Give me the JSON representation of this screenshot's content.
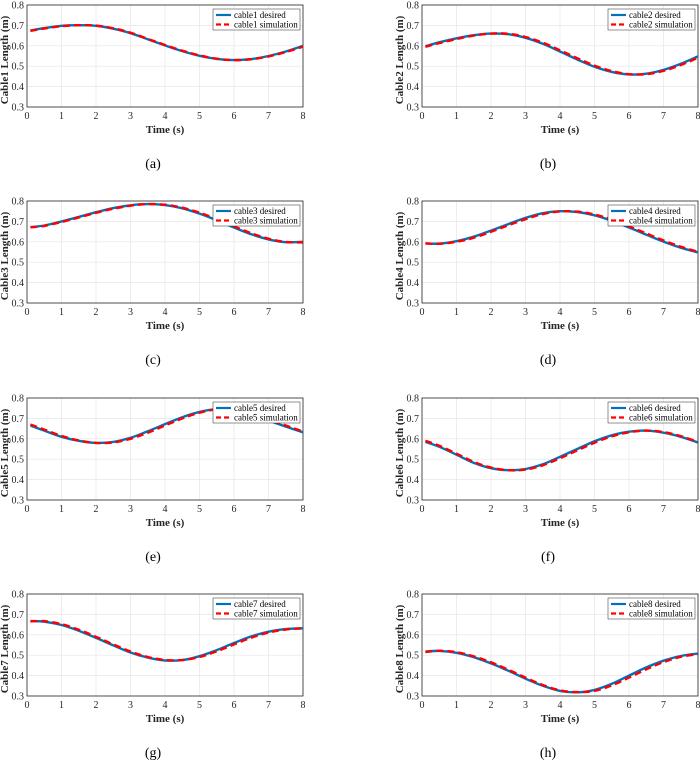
{
  "chart_data": [
    {
      "type": "line",
      "caption": "(a)",
      "xlabel": "Time (s)",
      "ylabel": "Cable1 Length (m)",
      "xlim": [
        0,
        8
      ],
      "ylim": [
        0.3,
        0.8
      ],
      "xticks": [
        "0",
        "1",
        "2",
        "3",
        "4",
        "5",
        "6",
        "7",
        "8"
      ],
      "yticks": [
        "0.3",
        "0.4",
        "0.5",
        "0.6",
        "0.7",
        "0.8"
      ],
      "grid": true,
      "legend_position": "top-right",
      "x": [
        0.1,
        0.5,
        1,
        1.5,
        2,
        2.5,
        3,
        3.5,
        4,
        4.5,
        5,
        5.5,
        6,
        6.5,
        7,
        7.5,
        8
      ],
      "series": [
        {
          "name": "cable1 desired",
          "color": "#0072BD",
          "style": "solid",
          "values": [
            0.675,
            0.687,
            0.698,
            0.701,
            0.698,
            0.684,
            0.662,
            0.632,
            0.602,
            0.574,
            0.551,
            0.536,
            0.53,
            0.535,
            0.55,
            0.572,
            0.6
          ]
        },
        {
          "name": "cable1 simulation",
          "color": "#FF0000",
          "style": "dashed",
          "lag": 0.1,
          "values": [
            0.673,
            0.685,
            0.696,
            0.701,
            0.699,
            0.686,
            0.664,
            0.634,
            0.604,
            0.576,
            0.553,
            0.537,
            0.53,
            0.534,
            0.548,
            0.569,
            0.596
          ]
        }
      ]
    },
    {
      "type": "line",
      "caption": "(b)",
      "xlabel": "Time (s)",
      "ylabel": "Cable2 Length (m)",
      "xlim": [
        0,
        8
      ],
      "ylim": [
        0.3,
        0.8
      ],
      "xticks": [
        "0",
        "1",
        "2",
        "3",
        "4",
        "5",
        "6",
        "7",
        "8"
      ],
      "yticks": [
        "0.3",
        "0.4",
        "0.5",
        "0.6",
        "0.7",
        "0.8"
      ],
      "grid": true,
      "legend_position": "top-right",
      "x": [
        0.1,
        0.5,
        1,
        1.5,
        2,
        2.5,
        3,
        3.5,
        4,
        4.5,
        5,
        5.5,
        6,
        6.5,
        7,
        7.5,
        8
      ],
      "series": [
        {
          "name": "cable2 desired",
          "color": "#0072BD",
          "style": "solid",
          "values": [
            0.598,
            0.617,
            0.637,
            0.652,
            0.66,
            0.657,
            0.639,
            0.61,
            0.572,
            0.533,
            0.497,
            0.472,
            0.46,
            0.463,
            0.482,
            0.512,
            0.548
          ]
        },
        {
          "name": "cable2 simulation",
          "color": "#FF0000",
          "style": "dashed",
          "values": [
            0.595,
            0.613,
            0.633,
            0.65,
            0.66,
            0.659,
            0.643,
            0.615,
            0.578,
            0.539,
            0.503,
            0.476,
            0.461,
            0.461,
            0.477,
            0.506,
            0.541
          ]
        }
      ]
    },
    {
      "type": "line",
      "caption": "(c)",
      "xlabel": "Time (s)",
      "ylabel": "Cable3 Length (m)",
      "xlim": [
        0,
        8
      ],
      "ylim": [
        0.3,
        0.8
      ],
      "xticks": [
        "0",
        "1",
        "2",
        "3",
        "4",
        "5",
        "6",
        "7",
        "8"
      ],
      "yticks": [
        "0.3",
        "0.4",
        "0.5",
        "0.6",
        "0.7",
        "0.8"
      ],
      "grid": true,
      "legend_position": "top-right",
      "x": [
        0.1,
        0.5,
        1,
        1.5,
        2,
        2.5,
        3,
        3.5,
        4,
        4.5,
        5,
        5.5,
        6,
        6.5,
        7,
        7.5,
        8
      ],
      "series": [
        {
          "name": "cable3 desired",
          "color": "#0072BD",
          "style": "solid",
          "values": [
            0.672,
            0.68,
            0.7,
            0.722,
            0.745,
            0.765,
            0.779,
            0.785,
            0.78,
            0.764,
            0.738,
            0.706,
            0.67,
            0.637,
            0.612,
            0.598,
            0.6
          ]
        },
        {
          "name": "cable3 simulation",
          "color": "#FF0000",
          "style": "dashed",
          "values": [
            0.671,
            0.678,
            0.697,
            0.719,
            0.742,
            0.762,
            0.777,
            0.785,
            0.782,
            0.767,
            0.743,
            0.711,
            0.676,
            0.642,
            0.615,
            0.599,
            0.597
          ]
        }
      ]
    },
    {
      "type": "line",
      "caption": "(d)",
      "xlabel": "Time (s)",
      "ylabel": "Cable4 Length (m)",
      "xlim": [
        0,
        8
      ],
      "ylim": [
        0.3,
        0.8
      ],
      "xticks": [
        "0",
        "1",
        "2",
        "3",
        "4",
        "5",
        "6",
        "7",
        "8"
      ],
      "yticks": [
        "0.3",
        "0.4",
        "0.5",
        "0.6",
        "0.7",
        "0.8"
      ],
      "grid": true,
      "legend_position": "top-right",
      "x": [
        0.1,
        0.5,
        1,
        1.5,
        2,
        2.5,
        3,
        3.5,
        4,
        4.5,
        5,
        5.5,
        6,
        6.5,
        7,
        7.5,
        8
      ],
      "series": [
        {
          "name": "cable4 desired",
          "color": "#0072BD",
          "style": "solid",
          "values": [
            0.592,
            0.591,
            0.603,
            0.625,
            0.655,
            0.687,
            0.717,
            0.74,
            0.75,
            0.746,
            0.73,
            0.703,
            0.67,
            0.635,
            0.601,
            0.571,
            0.548
          ]
        },
        {
          "name": "cable4 simulation",
          "color": "#FF0000",
          "style": "dashed",
          "values": [
            0.592,
            0.59,
            0.6,
            0.62,
            0.649,
            0.681,
            0.711,
            0.736,
            0.749,
            0.748,
            0.734,
            0.709,
            0.676,
            0.641,
            0.607,
            0.576,
            0.551
          ]
        }
      ]
    },
    {
      "type": "line",
      "caption": "(e)",
      "xlabel": "Time (s)",
      "ylabel": "Cable5 Length (m)",
      "xlim": [
        0,
        8
      ],
      "ylim": [
        0.3,
        0.8
      ],
      "xticks": [
        "0",
        "1",
        "2",
        "3",
        "4",
        "5",
        "6",
        "7",
        "8"
      ],
      "yticks": [
        "0.3",
        "0.4",
        "0.5",
        "0.6",
        "0.7",
        "0.8"
      ],
      "grid": true,
      "legend_position": "top-right",
      "x": [
        0.1,
        0.5,
        1,
        1.5,
        2,
        2.5,
        3,
        3.5,
        4,
        4.5,
        5,
        5.5,
        6,
        6.5,
        7,
        7.5,
        8
      ],
      "series": [
        {
          "name": "cable5 desired",
          "color": "#0072BD",
          "style": "solid",
          "values": [
            0.665,
            0.64,
            0.61,
            0.59,
            0.58,
            0.585,
            0.605,
            0.637,
            0.672,
            0.706,
            0.732,
            0.745,
            0.741,
            0.72,
            0.69,
            0.66,
            0.632
          ]
        },
        {
          "name": "cable5 simulation",
          "color": "#FF0000",
          "style": "dashed",
          "values": [
            0.67,
            0.645,
            0.614,
            0.592,
            0.58,
            0.582,
            0.6,
            0.63,
            0.665,
            0.7,
            0.728,
            0.744,
            0.743,
            0.724,
            0.695,
            0.665,
            0.636
          ]
        }
      ]
    },
    {
      "type": "line",
      "caption": "(f)",
      "xlabel": "Time (s)",
      "ylabel": "Cable6 Length (m)",
      "xlim": [
        0,
        8
      ],
      "ylim": [
        0.3,
        0.8
      ],
      "xticks": [
        "0",
        "1",
        "2",
        "3",
        "4",
        "5",
        "6",
        "7",
        "8"
      ],
      "yticks": [
        "0.3",
        "0.4",
        "0.5",
        "0.6",
        "0.7",
        "0.8"
      ],
      "grid": true,
      "legend_position": "top-right",
      "x": [
        0.1,
        0.5,
        1,
        1.5,
        2,
        2.5,
        3,
        3.5,
        4,
        4.5,
        5,
        5.5,
        6,
        6.5,
        7,
        7.5,
        8
      ],
      "series": [
        {
          "name": "cable6 desired",
          "color": "#0072BD",
          "style": "solid",
          "values": [
            0.585,
            0.561,
            0.522,
            0.482,
            0.456,
            0.446,
            0.452,
            0.475,
            0.512,
            0.55,
            0.588,
            0.617,
            0.635,
            0.64,
            0.63,
            0.61,
            0.582
          ]
        },
        {
          "name": "cable6 simulation",
          "color": "#FF0000",
          "style": "dashed",
          "values": [
            0.59,
            0.566,
            0.527,
            0.487,
            0.459,
            0.446,
            0.449,
            0.47,
            0.505,
            0.543,
            0.581,
            0.612,
            0.632,
            0.64,
            0.633,
            0.613,
            0.585
          ]
        }
      ]
    },
    {
      "type": "line",
      "caption": "(g)",
      "xlabel": "Time (s)",
      "ylabel": "Cable7 Length (m)",
      "xlim": [
        0,
        8
      ],
      "ylim": [
        0.3,
        0.8
      ],
      "xticks": [
        "0",
        "1",
        "2",
        "3",
        "4",
        "5",
        "6",
        "7",
        "8"
      ],
      "yticks": [
        "0.3",
        "0.4",
        "0.5",
        "0.6",
        "0.7",
        "0.8"
      ],
      "grid": true,
      "legend_position": "top-right",
      "x": [
        0.1,
        0.5,
        1,
        1.5,
        2,
        2.5,
        3,
        3.5,
        4,
        4.5,
        5,
        5.5,
        6,
        6.5,
        7,
        7.5,
        8
      ],
      "series": [
        {
          "name": "cable7 desired",
          "color": "#0072BD",
          "style": "solid",
          "values": [
            0.668,
            0.664,
            0.648,
            0.62,
            0.585,
            0.548,
            0.513,
            0.488,
            0.474,
            0.476,
            0.495,
            0.525,
            0.56,
            0.592,
            0.615,
            0.628,
            0.632
          ]
        },
        {
          "name": "cable7 simulation",
          "color": "#FF0000",
          "style": "dashed",
          "values": [
            0.666,
            0.667,
            0.652,
            0.625,
            0.59,
            0.553,
            0.518,
            0.491,
            0.477,
            0.476,
            0.491,
            0.519,
            0.553,
            0.586,
            0.611,
            0.626,
            0.632
          ]
        }
      ]
    },
    {
      "type": "line",
      "caption": "(h)",
      "xlabel": "Time (s)",
      "ylabel": "Cable8 Length (m)",
      "xlim": [
        0,
        8
      ],
      "ylim": [
        0.3,
        0.8
      ],
      "xticks": [
        "0",
        "1",
        "2",
        "3",
        "4",
        "5",
        "6",
        "7",
        "8"
      ],
      "yticks": [
        "0.3",
        "0.4",
        "0.5",
        "0.6",
        "0.7",
        "0.8"
      ],
      "grid": true,
      "legend_position": "top-right",
      "x": [
        0.1,
        0.5,
        1,
        1.5,
        2,
        2.5,
        3,
        3.5,
        4,
        4.5,
        5,
        5.5,
        6,
        6.5,
        7,
        7.5,
        8
      ],
      "series": [
        {
          "name": "cable8 desired",
          "color": "#0072BD",
          "style": "solid",
          "values": [
            0.518,
            0.521,
            0.512,
            0.49,
            0.46,
            0.424,
            0.385,
            0.35,
            0.325,
            0.318,
            0.33,
            0.36,
            0.4,
            0.44,
            0.473,
            0.496,
            0.508
          ]
        },
        {
          "name": "cable8 simulation",
          "color": "#FF0000",
          "style": "dashed",
          "values": [
            0.515,
            0.522,
            0.515,
            0.494,
            0.465,
            0.429,
            0.39,
            0.354,
            0.328,
            0.319,
            0.325,
            0.352,
            0.39,
            0.431,
            0.466,
            0.492,
            0.505
          ]
        }
      ]
    }
  ]
}
